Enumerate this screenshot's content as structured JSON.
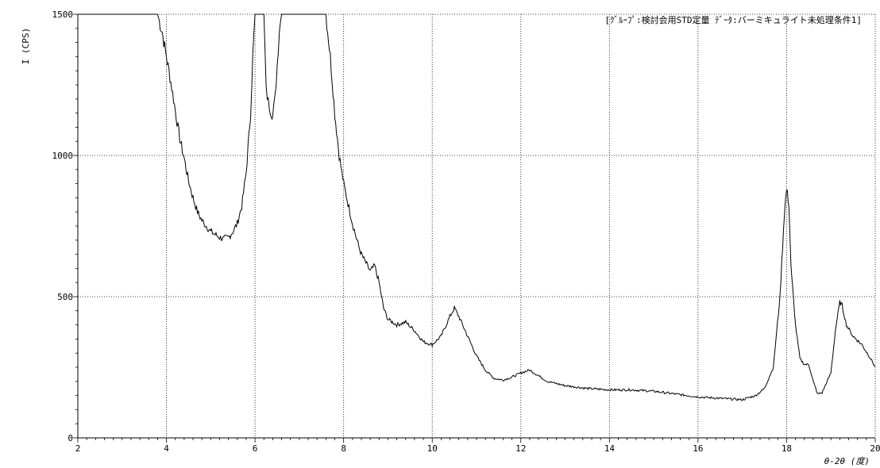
{
  "chart_data": {
    "type": "line",
    "title": "[ｸﾞﾙｰﾌﾟ:検討会用STD定量 ﾃﾞｰﾀ:バーミキュライト未処理条件1]",
    "xlabel": "θ-2θ (度)",
    "ylabel": "I (CPS)",
    "xlim": [
      2,
      20
    ],
    "ylim": [
      0,
      1500
    ],
    "xticks": [
      2,
      4,
      6,
      8,
      10,
      12,
      14,
      16,
      18,
      20
    ],
    "yticks": [
      0,
      500,
      1000,
      1500
    ],
    "grid": true,
    "series": [
      {
        "x": [
          2.0,
          3.5,
          3.8,
          3.9,
          4.0,
          4.1,
          4.2,
          4.3,
          4.4,
          4.5,
          4.6,
          4.7,
          4.8,
          4.9,
          5.0,
          5.1,
          5.2,
          5.3,
          5.4,
          5.5,
          5.6,
          5.7,
          5.8,
          5.9,
          5.95,
          6.0,
          6.1,
          6.2,
          6.25,
          6.3,
          6.35,
          6.4,
          6.45,
          6.5,
          6.55,
          6.6,
          6.65,
          7.6,
          7.7,
          7.8,
          7.9,
          8.0,
          8.1,
          8.2,
          8.3,
          8.4,
          8.5,
          8.6,
          8.7,
          8.8,
          8.9,
          9.0,
          9.2,
          9.4,
          9.6,
          9.8,
          10.0,
          10.2,
          10.4,
          10.5,
          10.6,
          10.8,
          11.0,
          11.2,
          11.4,
          11.6,
          11.8,
          12.0,
          12.2,
          12.4,
          12.6,
          13.0,
          13.5,
          14.0,
          14.5,
          15.0,
          15.5,
          16.0,
          16.5,
          17.0,
          17.3,
          17.5,
          17.7,
          17.85,
          17.95,
          18.0,
          18.05,
          18.1,
          18.2,
          18.3,
          18.4,
          18.5,
          18.6,
          18.7,
          18.8,
          19.0,
          19.1,
          19.2,
          19.25,
          19.35,
          19.5,
          19.7,
          19.9,
          20.0
        ],
        "y": [
          1500,
          1500,
          1500,
          1440,
          1350,
          1260,
          1160,
          1060,
          990,
          910,
          850,
          800,
          770,
          750,
          730,
          720,
          710,
          705,
          710,
          730,
          760,
          820,
          940,
          1150,
          1350,
          1500,
          1500,
          1500,
          1230,
          1190,
          1160,
          1140,
          1200,
          1320,
          1450,
          1500,
          1500,
          1500,
          1350,
          1150,
          1000,
          900,
          830,
          760,
          700,
          650,
          620,
          590,
          610,
          550,
          460,
          420,
          400,
          410,
          380,
          340,
          330,
          360,
          430,
          460,
          430,
          360,
          290,
          240,
          210,
          205,
          215,
          230,
          240,
          220,
          200,
          185,
          175,
          170,
          170,
          165,
          155,
          145,
          140,
          135,
          150,
          175,
          250,
          500,
          800,
          880,
          830,
          600,
          400,
          280,
          260,
          260,
          200,
          155,
          160,
          230,
          380,
          480,
          470,
          400,
          360,
          330,
          280,
          250
        ]
      }
    ]
  }
}
